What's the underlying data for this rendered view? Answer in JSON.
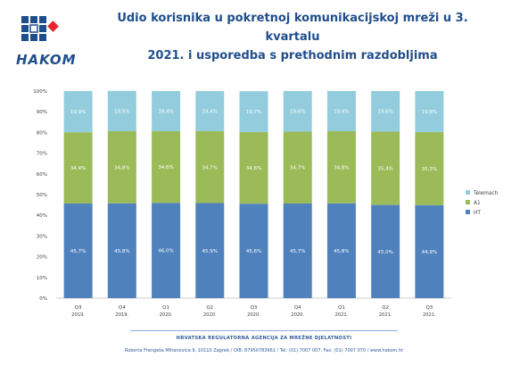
{
  "logo": {
    "text": "HAKOM",
    "colors": {
      "blue": "#1f4e8c",
      "red": "#e4262c"
    }
  },
  "title": {
    "line1": "Udio korisnika u pokretnoj komunikacijskoj mreži u 3. kvartalu",
    "line2": "2021. i usporedba s prethodnim razdobljima"
  },
  "chart_data": {
    "type": "bar",
    "stacked": true,
    "percent": true,
    "categories": [
      [
        "Q3",
        "2019."
      ],
      [
        "Q4",
        "2019."
      ],
      [
        "Q1",
        "2020."
      ],
      [
        "Q2",
        "2020."
      ],
      [
        "Q3",
        "2020."
      ],
      [
        "Q4",
        "2020."
      ],
      [
        "Q1",
        "2021."
      ],
      [
        "Q2",
        "2021."
      ],
      [
        "Q3",
        "2021."
      ]
    ],
    "series": [
      {
        "name": "HT",
        "color": "#4f81bd",
        "values": [
          45.7,
          45.8,
          46.0,
          45.9,
          45.6,
          45.7,
          45.8,
          45.0,
          44.9
        ],
        "labels": [
          "45,7%",
          "45,8%",
          "46,0%",
          "45,9%",
          "45,6%",
          "45,7%",
          "45,8%",
          "45,0%",
          "44,9%"
        ]
      },
      {
        "name": "A1",
        "color": "#9bbb59",
        "values": [
          34.4,
          34.8,
          34.6,
          34.7,
          34.6,
          34.7,
          34.8,
          35.4,
          35.3
        ],
        "labels": [
          "34,4%",
          "34,8%",
          "34,6%",
          "34,7%",
          "34,6%",
          "34,7%",
          "34,8%",
          "35,4%",
          "35,3%"
        ]
      },
      {
        "name": "Telemach",
        "color": "#93cddd",
        "values": [
          19.9,
          19.5,
          19.4,
          19.4,
          19.7,
          19.6,
          19.4,
          19.6,
          19.8
        ],
        "labels": [
          "19,9%",
          "19,5%",
          "19,4%",
          "19,4%",
          "19,7%",
          "19,6%",
          "19,4%",
          "19,6%",
          "19,8%"
        ]
      }
    ],
    "legend": {
      "placement": "right",
      "order": [
        "Telemach",
        "A1",
        "HT"
      ]
    },
    "ylim": [
      0,
      100
    ],
    "yticks": [
      "0%",
      "10%",
      "20%",
      "30%",
      "40%",
      "50%",
      "60%",
      "70%",
      "80%",
      "90%",
      "100%"
    ],
    "grid": false
  },
  "footer": {
    "agency": "HRVATSKA REGULATORNA AGENCIJA ZA MREŽNE DJELATNOSTI",
    "address": "Roberta Frangeša Mihanovića 9, 10110 Zagreb / OIB: 87950783661 / Tel: (01) 7007 007, Fax: (01) 7007 070 / www.hakom.hr"
  }
}
